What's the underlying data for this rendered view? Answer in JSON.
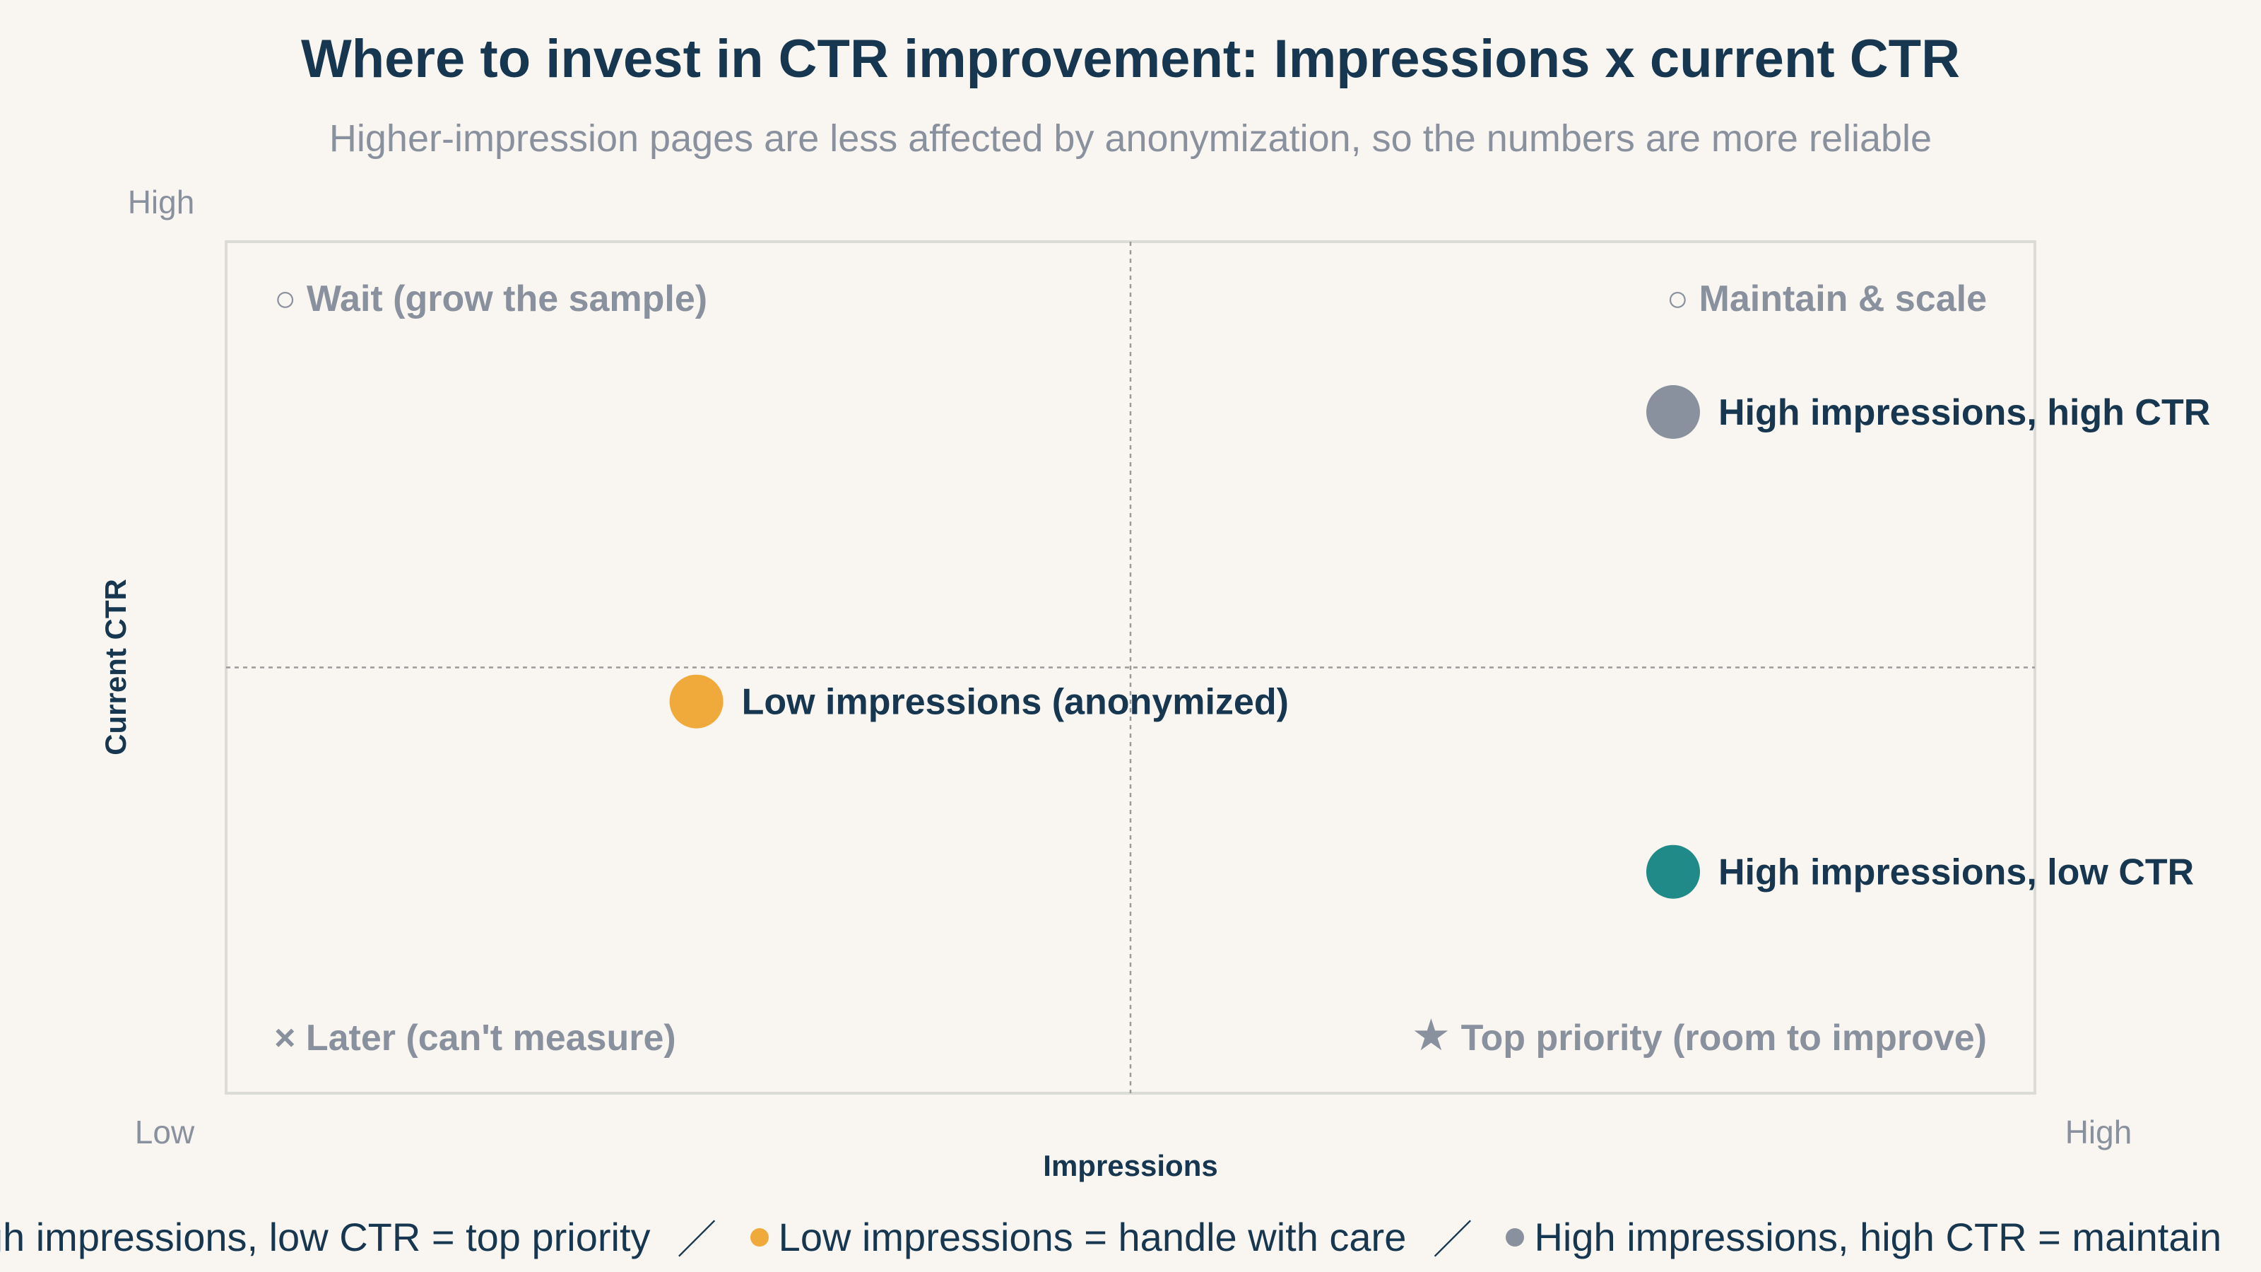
{
  "title": "Where to invest in CTR improvement: Impressions x current CTR",
  "subtitle": "Higher-impression pages are less affected by anonymization, so the numbers are more reliable",
  "colors": {
    "teal": "#1f8a87",
    "orange": "#f0a93b",
    "gray": "#8a919e",
    "navy": "#17364f",
    "frame": "#dcdcd6"
  },
  "chart_data": {
    "type": "scatter",
    "xlabel": "Impressions",
    "ylabel": "Current CTR",
    "xlim": [
      0,
      1
    ],
    "ylim": [
      0,
      1
    ],
    "x_tick_labels": {
      "low": "Low",
      "high": "High"
    },
    "y_tick_labels": {
      "low": "Low",
      "high": "High"
    },
    "quadrant_dividers": {
      "x": 0.5,
      "y": 0.5
    },
    "grid": false,
    "points": [
      {
        "label": "High impressions, high CTR",
        "x": 0.8,
        "y": 0.8,
        "color": "#8a919e"
      },
      {
        "label": "Low impressions (anonymized)",
        "x": 0.26,
        "y": 0.46,
        "color": "#f0a93b"
      },
      {
        "label": "High impressions, low CTR",
        "x": 0.8,
        "y": 0.26,
        "color": "#1f8a87"
      }
    ],
    "quadrants": [
      {
        "symbol": "○",
        "label": "Wait (grow the sample)",
        "position": "top-left"
      },
      {
        "symbol": "○",
        "label": "Maintain & scale",
        "position": "top-right"
      },
      {
        "symbol": "×",
        "label": "Later (can't measure)",
        "position": "bottom-left"
      },
      {
        "symbol": "★",
        "label": "Top priority (room to improve)",
        "position": "bottom-right"
      }
    ]
  },
  "legend": {
    "item1": "High impressions, low CTR = top priority",
    "sep": "／",
    "item2": "Low impressions = handle with care",
    "item3": "High impressions, high CTR = maintain"
  }
}
